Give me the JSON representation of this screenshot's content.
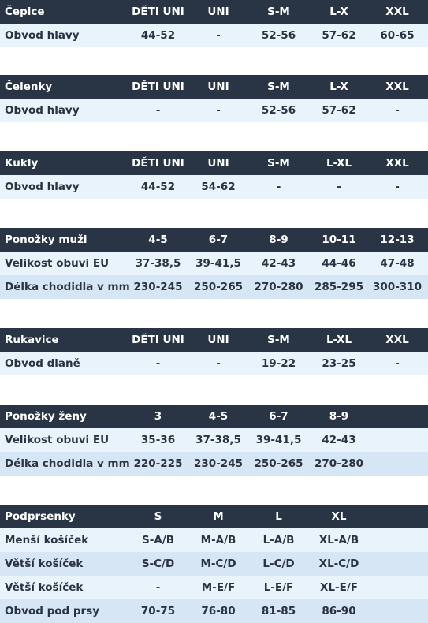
{
  "tables": [
    {
      "header": [
        "Čepice",
        "DĚTI UNI",
        "UNI",
        "S-M",
        "L-X",
        "XXL"
      ],
      "rows": [
        [
          "Obvod hlavy",
          "44-52",
          "-",
          "52-56",
          "57-62",
          "60-65"
        ]
      ]
    },
    {
      "header": [
        "Čelenky",
        "DĚTI UNI",
        "UNI",
        "S-M",
        "L-X",
        "XXL"
      ],
      "rows": [
        [
          "Obvod hlavy",
          "-",
          "-",
          "52-56",
          "57-62",
          "-"
        ]
      ]
    },
    {
      "header": [
        "Kukly",
        "DĚTI UNI",
        "UNI",
        "S-M",
        "L-XL",
        "XXL"
      ],
      "rows": [
        [
          "Obvod hlavy",
          "44-52",
          "54-62",
          "-",
          "-",
          "-"
        ]
      ]
    },
    {
      "header": [
        "Ponožky muži",
        "4-5",
        "6-7",
        "8-9",
        "10-11",
        "12-13"
      ],
      "rows": [
        [
          "Velikost obuvi EU",
          "37-38,5",
          "39-41,5",
          "42-43",
          "44-46",
          "47-48"
        ],
        [
          "Délka chodidla v mm",
          "230-245",
          "250-265",
          "270-280",
          "285-295",
          "300-310"
        ]
      ]
    },
    {
      "header": [
        "Rukavice",
        "DĚTI UNI",
        "UNI",
        "S-M",
        "L-XL",
        "XXL"
      ],
      "rows": [
        [
          "Obvod dlaně",
          "-",
          "-",
          "19-22",
          "23-25",
          "-"
        ]
      ]
    },
    {
      "header": [
        "Ponožky ženy",
        "3",
        "4-5",
        "6-7",
        "8-9",
        ""
      ],
      "rows": [
        [
          "Velikost obuvi EU",
          "35-36",
          "37-38,5",
          "39-41,5",
          "42-43",
          ""
        ],
        [
          "Délka chodidla v mm",
          "220-225",
          "230-245",
          "250-265",
          "270-280",
          ""
        ]
      ]
    },
    {
      "header": [
        "Podprsenky",
        "S",
        "M",
        "L",
        "XL",
        ""
      ],
      "rows": [
        [
          "Menší košíček",
          "S-A/B",
          "M-A/B",
          "L-A/B",
          "XL-A/B",
          ""
        ],
        [
          "Větší košíček",
          "S-C/D",
          "M-C/D",
          "L-C/D",
          "XL-C/D",
          ""
        ],
        [
          "Větší košíček",
          "-",
          "M-E/F",
          "L-E/F",
          "XL-E/F",
          ""
        ],
        [
          "Obvod pod prsy",
          "70-75",
          "76-80",
          "81-85",
          "86-90",
          ""
        ]
      ]
    }
  ]
}
